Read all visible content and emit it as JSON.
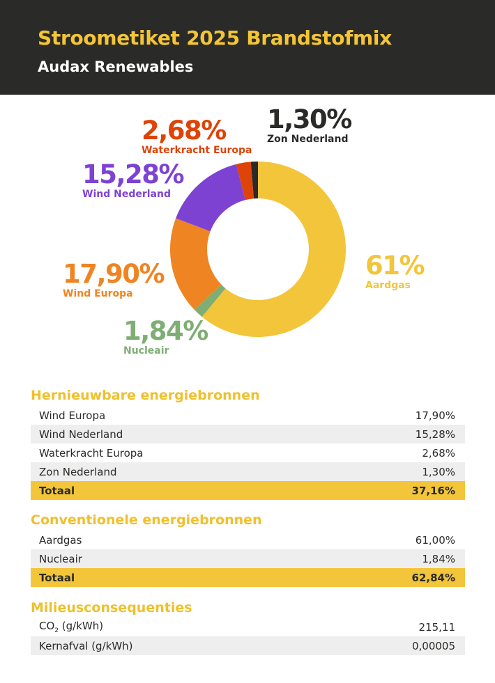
{
  "header": {
    "title": "Stroometiket 2025 Brandstofmix",
    "subtitle": "Audax Renewables"
  },
  "chart_data": {
    "type": "pie",
    "title": "",
    "slices": [
      {
        "name": "Aardgas",
        "label": "61%",
        "value": 61.0,
        "color": "#f2c53a"
      },
      {
        "name": "Nucleair",
        "label": "1,84%",
        "value": 1.84,
        "color": "#7fae74"
      },
      {
        "name": "Wind Europa",
        "label": "17,90%",
        "value": 17.9,
        "color": "#ef8422"
      },
      {
        "name": "Wind Nederland",
        "label": "15,28%",
        "value": 15.28,
        "color": "#7d42d2"
      },
      {
        "name": "Waterkracht Europa",
        "label": "2,68%",
        "value": 2.68,
        "color": "#de4307"
      },
      {
        "name": "Zon Nederland",
        "label": "1,30%",
        "value": 1.3,
        "color": "#2a2a28"
      }
    ]
  },
  "renewable": {
    "title": "Hernieuwbare energiebronnen",
    "rows": [
      {
        "name": "Wind Europa",
        "value": "17,90%"
      },
      {
        "name": "Wind Nederland",
        "value": "15,28%"
      },
      {
        "name": "Waterkracht Europa",
        "value": "2,68%"
      },
      {
        "name": "Zon Nederland",
        "value": "1,30%"
      }
    ],
    "total": {
      "name": "Totaal",
      "value": "37,16%"
    }
  },
  "conventional": {
    "title": "Conventionele energiebronnen",
    "rows": [
      {
        "name": "Aardgas",
        "value": "61,00%"
      },
      {
        "name": "Nucleair",
        "value": "1,84%"
      }
    ],
    "total": {
      "name": "Totaal",
      "value": "62,84%"
    }
  },
  "environment": {
    "title": "Milieusconsequenties",
    "co2": {
      "prefix": "CO",
      "sub": "2",
      "suffix": " (g/kWh)",
      "value": "215,11"
    },
    "waste": {
      "name": "Kernafval (g/kWh)",
      "value": "0,00005"
    }
  }
}
